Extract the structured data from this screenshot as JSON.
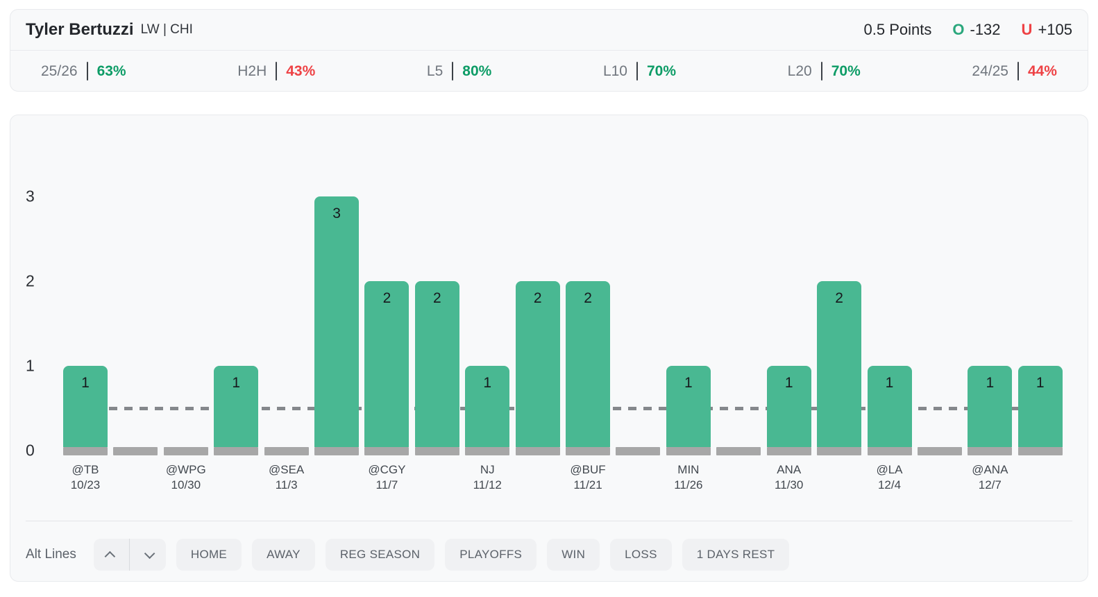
{
  "header": {
    "player_name": "Tyler Bertuzzi",
    "position_team": "LW | CHI",
    "line_label": "0.5 Points",
    "over": {
      "symbol": "O",
      "odds": "-132"
    },
    "under": {
      "symbol": "U",
      "odds": "+105"
    }
  },
  "stats": [
    {
      "label": "25/26",
      "value": "63%",
      "trend": "over"
    },
    {
      "label": "H2H",
      "value": "43%",
      "trend": "under"
    },
    {
      "label": "L5",
      "value": "80%",
      "trend": "over"
    },
    {
      "label": "L10",
      "value": "70%",
      "trend": "over"
    },
    {
      "label": "L20",
      "value": "70%",
      "trend": "over"
    },
    {
      "label": "24/25",
      "value": "44%",
      "trend": "under"
    }
  ],
  "chart_data": {
    "type": "bar",
    "ylim": [
      0,
      3
    ],
    "yticks": [
      0,
      1,
      2,
      3
    ],
    "threshold_line": 0.5,
    "grid": false,
    "bar_color": "#49b892",
    "zero_bar_color": "#a7a7a7",
    "threshold_color": "#85888c",
    "games": [
      {
        "label": "@TB",
        "date": "10/23",
        "value": 1
      },
      {
        "label": "",
        "date": "",
        "value": 0
      },
      {
        "label": "@WPG",
        "date": "10/30",
        "value": 0
      },
      {
        "label": "",
        "date": "",
        "value": 1
      },
      {
        "label": "@SEA",
        "date": "11/3",
        "value": 0
      },
      {
        "label": "",
        "date": "",
        "value": 3
      },
      {
        "label": "@CGY",
        "date": "11/7",
        "value": 2
      },
      {
        "label": "",
        "date": "",
        "value": 2
      },
      {
        "label": "NJ",
        "date": "11/12",
        "value": 1
      },
      {
        "label": "",
        "date": "",
        "value": 2
      },
      {
        "label": "@BUF",
        "date": "11/21",
        "value": 2
      },
      {
        "label": "",
        "date": "",
        "value": 0
      },
      {
        "label": "MIN",
        "date": "11/26",
        "value": 1
      },
      {
        "label": "",
        "date": "",
        "value": 0
      },
      {
        "label": "ANA",
        "date": "11/30",
        "value": 1
      },
      {
        "label": "",
        "date": "",
        "value": 2
      },
      {
        "label": "@LA",
        "date": "12/4",
        "value": 1
      },
      {
        "label": "",
        "date": "",
        "value": 0
      },
      {
        "label": "@ANA",
        "date": "12/7",
        "value": 1
      },
      {
        "label": "",
        "date": "",
        "value": 1
      }
    ]
  },
  "controls": {
    "alt_lines_label": "Alt Lines",
    "filter_buttons": [
      "HOME",
      "AWAY",
      "REG SEASON",
      "PLAYOFFS",
      "WIN",
      "LOSS",
      "1 DAYS REST"
    ]
  },
  "colors": {
    "over_green": "#0d9c66",
    "under_red": "#ee4245",
    "over_symbol_green": "#2aa77c",
    "card_bg": "#f8f9fa",
    "card_border": "#e8eaed"
  }
}
